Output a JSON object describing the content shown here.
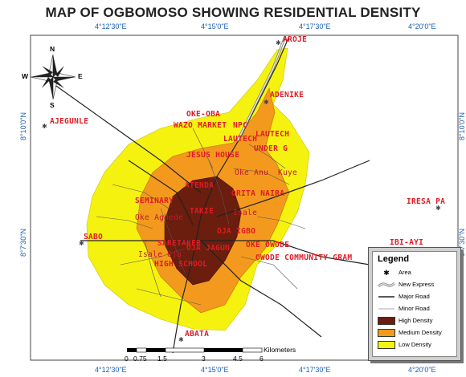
{
  "title": "MAP OF OGBOMOSO SHOWING RESIDENTIAL DENSITY",
  "colors": {
    "high_density": "#6b1d0e",
    "medium_density": "#f39a1e",
    "low_density": "#f5f20f",
    "label": "#e01b24",
    "coord": "#1a5fb4"
  },
  "coords": {
    "top": [
      "4°12'30\"E",
      "4°15'0\"E",
      "4°17'30\"E",
      "4°20'0\"E"
    ],
    "bottom": [
      "4°12'30\"E",
      "4°15'0\"E",
      "4°17'30\"E",
      "4°20'0\"E"
    ],
    "left": [
      "8°10'0\"N",
      "8°7'30\"N"
    ],
    "right": [
      "8°10'0\"N",
      "8°7'30\"N"
    ]
  },
  "north_arrow": {
    "n": "N",
    "s": "S",
    "e": "E",
    "w": "W"
  },
  "places": {
    "aroje": "AROJE",
    "adenike": "ADENIKE",
    "ajegunle": "AJEGUNLE",
    "oke_oba": "OKE-OBA",
    "wazo_market": "WAZO MARKET",
    "npc": "NPC",
    "lautech_1": "LAUTECH",
    "lautech_2": "LAUTECH",
    "under_g": "UNDER G",
    "jesus_house": "JESUS HOUSE",
    "oke_anu": "Oke Anu",
    "kuye": "Kuye",
    "atenda": "ATENDA",
    "orita_naira": "ORITA NAIRA",
    "seminary": "SEMINARY",
    "takie": "TAKIE",
    "isale": "Isale",
    "oke_agbede": "Oke Agbede",
    "iresa_pa": "IRESA PA",
    "sabo": "SABO",
    "oja_igbo": "OJA IGBO",
    "saretaker": "SARETAKER",
    "oja_jagun": "OJA JAGUN",
    "oke_owode": "OKE OWODE",
    "isale_oja": "Isale Oja",
    "owode_community": "OWODE COMMUNITY GRAM",
    "high_school": "HIGH SCHOOL",
    "ibi_aiyi": "IBI-AYI",
    "abata": "ABATA"
  },
  "legend": {
    "title": "Legend",
    "items": [
      {
        "label": "Area",
        "symbol": "area-star"
      },
      {
        "label": "New Express",
        "symbol": "express-line"
      },
      {
        "label": "Major Road",
        "symbol": "major-road"
      },
      {
        "label": "Minor Road",
        "symbol": "minor-road"
      },
      {
        "label": "High Density",
        "symbol": "swatch",
        "color": "#6b1d0e"
      },
      {
        "label": "Medium Density",
        "symbol": "swatch",
        "color": "#f39a1e"
      },
      {
        "label": "Low Density",
        "symbol": "swatch",
        "color": "#f5f20f"
      }
    ]
  },
  "scale": {
    "unit": "Kilometers",
    "ticks": [
      "0",
      "0.75",
      "1.5",
      "3",
      "4.5",
      "6"
    ]
  }
}
